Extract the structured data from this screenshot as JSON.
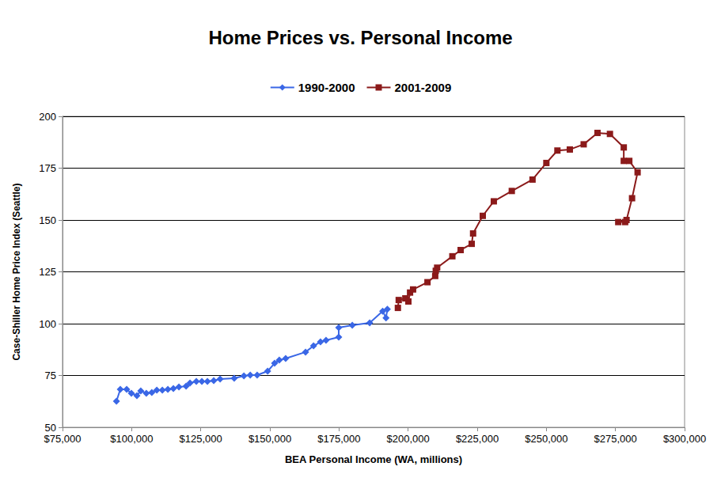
{
  "chart_data": {
    "type": "line",
    "title": "Home Prices vs. Personal Income",
    "x_label": "BEA Personal Income (WA, millions)",
    "y_label": "Case-Shiller Home Price Index (Seattle)",
    "xlim": [
      75000,
      300000
    ],
    "xticks": [
      {
        "value": 75000,
        "label": "$75,000"
      },
      {
        "value": 100000,
        "label": "$100,000"
      },
      {
        "value": 125000,
        "label": "$125,000"
      },
      {
        "value": 150000,
        "label": "$150,000"
      },
      {
        "value": 175000,
        "label": "$175,000"
      },
      {
        "value": 200000,
        "label": "$200,000"
      },
      {
        "value": 225000,
        "label": "$225,000"
      },
      {
        "value": 250000,
        "label": "$250,000"
      },
      {
        "value": 275000,
        "label": "$275,000"
      },
      {
        "value": 300000,
        "label": "$300,000"
      }
    ],
    "ylim": [
      50,
      200
    ],
    "yticks": [
      50,
      75,
      100,
      125,
      150,
      175,
      200
    ],
    "grid": true,
    "legend": "top",
    "series": [
      {
        "name": "1990-2000",
        "color": "#3a67e6",
        "marker": "diamond",
        "x": [
          94500,
          95900,
          98200,
          99900,
          101900,
          103300,
          105300,
          107300,
          109100,
          111100,
          113100,
          115100,
          117100,
          119700,
          121100,
          123400,
          125400,
          127400,
          129700,
          132000,
          137100,
          140600,
          142900,
          145400,
          149200,
          151700,
          153400,
          155700,
          162900,
          165800,
          168300,
          170300,
          174900,
          174900,
          179800,
          186100,
          190800,
          192000,
          192500
        ],
        "values": [
          62.6,
          68.3,
          68.3,
          66.4,
          65.3,
          67.6,
          66.4,
          66.8,
          67.9,
          67.9,
          68.3,
          68.7,
          69.5,
          69.8,
          71.4,
          72.1,
          72.1,
          72.1,
          72.5,
          73.3,
          73.7,
          74.8,
          75.2,
          75.2,
          77.1,
          80.9,
          82.4,
          83.2,
          86.3,
          89.3,
          91.2,
          92.0,
          93.5,
          98.1,
          99.2,
          100.4,
          106.0,
          102.8,
          107.0
        ]
      },
      {
        "name": "2001-2009",
        "color": "#8b1a1a",
        "marker": "square",
        "x": [
          196300,
          196600,
          199000,
          200100,
          200700,
          201800,
          207000,
          209800,
          210000,
          210500,
          216000,
          219000,
          223000,
          223500,
          227000,
          231000,
          237500,
          245000,
          250000,
          254000,
          258500,
          263500,
          268500,
          273000,
          278000,
          278000,
          280000,
          283000,
          281000,
          279000,
          276000,
          278500
        ],
        "values": [
          107.6,
          111.4,
          112.2,
          110.7,
          115.0,
          116.5,
          120.0,
          123.0,
          125.5,
          127.0,
          132.5,
          135.5,
          138.5,
          143.5,
          152.0,
          159.0,
          164.0,
          169.5,
          177.5,
          183.5,
          184.0,
          186.5,
          192.0,
          191.5,
          185.0,
          178.5,
          178.5,
          173.0,
          160.5,
          150.0,
          149.0,
          149.0
        ]
      }
    ]
  }
}
